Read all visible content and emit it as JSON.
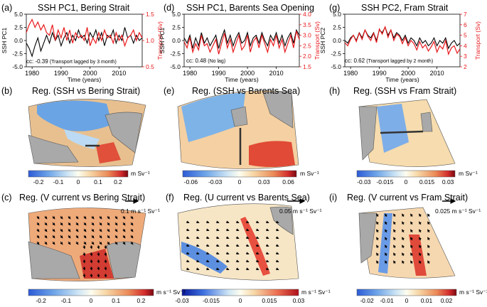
{
  "panels_top": [
    {
      "label": "(a)",
      "title": "SSH PC1, Bering Strait",
      "ylabel_left": "SSH PC1",
      "ylabel_right": "Transport (Sv)",
      "cc": "cc: -0.39",
      "cc_note": "(Transport lagged by 3 month)"
    },
    {
      "label": "(d)",
      "title": "SSH PC1, Barents Sea Opening",
      "ylabel_left": "SSH PC1",
      "ylabel_right": "Transport (Sv)",
      "cc": "cc: 0.48",
      "cc_note": "(No lag)"
    },
    {
      "label": "(g)",
      "title": "SSH PC2, Fram Strait",
      "ylabel_left": "SSH PC2",
      "ylabel_right": "Transport (Sv)",
      "cc": "cc: 0.62",
      "cc_note": "(Transport lagged by 2 month)"
    }
  ],
  "panels_mid": [
    {
      "label": "(b)",
      "title": "Reg. (SSH vs Bering Strait)",
      "unit": "m Sv⁻¹"
    },
    {
      "label": "(e)",
      "title": "Reg. (SSH vs Barents Sea)",
      "unit": "m Sv⁻¹"
    },
    {
      "label": "(h)",
      "title": "Reg. (SSH vs Fram Strait)",
      "unit": "m Sv⁻¹"
    }
  ],
  "panels_bot": [
    {
      "label": "(c)",
      "title": "Reg. (V current vs Bering Strait)",
      "unit": "m s⁻¹ Sv⁻¹",
      "arrow": "0.1 m s⁻¹ Sv⁻¹"
    },
    {
      "label": "(f)",
      "title": "Reg. (U current vs Barents Sea)",
      "unit": "m s⁻¹ Sv⁻¹",
      "arrow": "0.05 m s⁻¹ Sv⁻¹"
    },
    {
      "label": "(i)",
      "title": "Reg. (V current vs Fram Strait)",
      "unit": "m s⁻¹ Sv⁻¹",
      "arrow": "0.025 m s⁻¹ Sv⁻¹"
    }
  ],
  "colors": {
    "ssh": "#000000",
    "transport": "#e8191c",
    "land": "#a9a9a9"
  },
  "chart_data": [
    {
      "type": "line",
      "panel": "a",
      "xlabel": "Time (years)",
      "xlim": [
        1978,
        2018
      ],
      "xticks": [
        1980,
        1990,
        2000,
        2010
      ],
      "xtick_labels": [
        "1980",
        "1990",
        "2000",
        "2010"
      ],
      "ylim_left": [
        -5.0,
        5.0
      ],
      "yticks_left": [
        "5.0",
        "2.5",
        "0.0",
        "-2.5",
        "-5.0"
      ],
      "ylim_right": [
        0.5,
        1.5
      ],
      "yticks_right": [
        "1.5",
        "1.0",
        "0.5"
      ],
      "series": [
        {
          "axis": "left",
          "color": "#000000",
          "x": [
            1978,
            1979,
            1980,
            1981,
            1982,
            1983,
            1984,
            1985,
            1986,
            1987,
            1988,
            1989,
            1990,
            1991,
            1992,
            1993,
            1994,
            1995,
            1996,
            1997,
            1998,
            1999,
            2000,
            2001,
            2002,
            2003,
            2004,
            2005,
            2006,
            2007,
            2008,
            2009,
            2010,
            2011,
            2012,
            2013,
            2014,
            2015,
            2016,
            2017,
            2018
          ],
          "values": [
            -0.5,
            -1.5,
            -3.0,
            -1.0,
            0.5,
            -2.0,
            -0.5,
            1.0,
            -0.5,
            1.5,
            0.0,
            1.0,
            -1.0,
            0.5,
            1.5,
            -0.5,
            1.0,
            0.0,
            2.0,
            0.5,
            1.0,
            -0.5,
            1.5,
            0.5,
            2.0,
            0.0,
            1.5,
            -1.0,
            1.0,
            0.5,
            2.0,
            -0.5,
            1.0,
            0.0,
            2.5,
            0.5,
            1.0,
            -0.5,
            1.0,
            0.0,
            0.5
          ]
        },
        {
          "axis": "right",
          "color": "#e8191c",
          "x": [
            1978,
            1979,
            1980,
            1981,
            1982,
            1983,
            1984,
            1985,
            1986,
            1987,
            1988,
            1989,
            1990,
            1991,
            1992,
            1993,
            1994,
            1995,
            1996,
            1997,
            1998,
            1999,
            2000,
            2001,
            2002,
            2003,
            2004,
            2005,
            2006,
            2007,
            2008,
            2009,
            2010,
            2011,
            2012,
            2013,
            2014,
            2015,
            2016,
            2017,
            2018
          ],
          "values": [
            1.15,
            1.3,
            1.4,
            1.25,
            1.35,
            1.2,
            1.3,
            1.15,
            1.1,
            1.3,
            1.0,
            1.2,
            1.05,
            1.25,
            1.0,
            1.2,
            0.95,
            1.15,
            1.05,
            1.1,
            1.0,
            1.25,
            0.9,
            1.05,
            0.95,
            1.15,
            1.0,
            1.2,
            1.05,
            1.1,
            0.95,
            1.15,
            1.0,
            1.1,
            0.9,
            1.05,
            1.1,
            1.2,
            1.0,
            1.15,
            1.05
          ]
        }
      ]
    },
    {
      "type": "line",
      "panel": "d",
      "xlabel": "Time (years)",
      "xlim": [
        1978,
        2018
      ],
      "xticks": [
        1980,
        1990,
        2000,
        2010
      ],
      "xtick_labels": [
        "1980",
        "1990",
        "2000",
        "2010"
      ],
      "ylim_left": [
        -5.0,
        5.0
      ],
      "yticks_left": [
        "5.0",
        "2.5",
        "0.0",
        "-2.5",
        "-5.0"
      ],
      "ylim_right": [
        1.5,
        4.0
      ],
      "yticks_right": [
        "4.0",
        "3.5",
        "3.0",
        "2.5",
        "2.0",
        "1.5"
      ],
      "series": [
        {
          "axis": "left",
          "color": "#000000",
          "x": [
            1978,
            1979,
            1980,
            1981,
            1982,
            1983,
            1984,
            1985,
            1986,
            1987,
            1988,
            1989,
            1990,
            1991,
            1992,
            1993,
            1994,
            1995,
            1996,
            1997,
            1998,
            1999,
            2000,
            2001,
            2002,
            2003,
            2004,
            2005,
            2006,
            2007,
            2008,
            2009,
            2010,
            2011,
            2012,
            2013,
            2014,
            2015,
            2016,
            2017,
            2018
          ],
          "values": [
            0.5,
            -0.5,
            1.0,
            -1.5,
            0.5,
            -1.0,
            1.5,
            -0.5,
            0.5,
            -1.0,
            0.0,
            1.0,
            -1.5,
            0.5,
            2.0,
            -0.5,
            1.0,
            -1.0,
            0.5,
            1.5,
            -0.5,
            0.0,
            1.5,
            -1.0,
            0.5,
            1.0,
            -0.5,
            1.5,
            0.0,
            -1.0,
            1.0,
            0.0,
            1.5,
            -0.5,
            1.0,
            -1.0,
            0.5,
            1.5,
            -0.5,
            2.0,
            1.0
          ]
        },
        {
          "axis": "right",
          "color": "#e8191c",
          "x": [
            1978,
            1979,
            1980,
            1981,
            1982,
            1983,
            1984,
            1985,
            1986,
            1987,
            1988,
            1989,
            1990,
            1991,
            1992,
            1993,
            1994,
            1995,
            1996,
            1997,
            1998,
            1999,
            2000,
            2001,
            2002,
            2003,
            2004,
            2005,
            2006,
            2007,
            2008,
            2009,
            2010,
            2011,
            2012,
            2013,
            2014,
            2015,
            2016,
            2017,
            2018
          ],
          "values": [
            2.7,
            2.4,
            2.9,
            2.2,
            2.6,
            2.3,
            3.0,
            2.5,
            2.6,
            2.2,
            2.5,
            2.8,
            2.1,
            2.6,
            3.1,
            2.4,
            2.8,
            2.2,
            2.6,
            3.0,
            2.3,
            2.5,
            3.0,
            2.2,
            2.7,
            2.9,
            2.4,
            3.0,
            2.6,
            2.2,
            2.8,
            2.5,
            3.0,
            2.4,
            2.8,
            2.2,
            2.6,
            3.0,
            2.4,
            3.2,
            2.8
          ]
        }
      ]
    },
    {
      "type": "line",
      "panel": "g",
      "xlabel": "Time (years)",
      "xlim": [
        1978,
        2018
      ],
      "xticks": [
        1980,
        1990,
        2000,
        2010
      ],
      "xtick_labels": [
        "1980",
        "1990",
        "2000",
        "2010"
      ],
      "ylim_left": [
        -5.0,
        5.0
      ],
      "yticks_left": [
        "5.0",
        "2.5",
        "0.0",
        "-2.5",
        "-5.0"
      ],
      "ylim_right": [
        2,
        7
      ],
      "yticks_right": [
        "7",
        "6",
        "5",
        "4",
        "3",
        "2"
      ],
      "series": [
        {
          "axis": "left",
          "color": "#000000",
          "x": [
            1978,
            1979,
            1980,
            1981,
            1982,
            1983,
            1984,
            1985,
            1986,
            1987,
            1988,
            1989,
            1990,
            1991,
            1992,
            1993,
            1994,
            1995,
            1996,
            1997,
            1998,
            1999,
            2000,
            2001,
            2002,
            2003,
            2004,
            2005,
            2006,
            2007,
            2008,
            2009,
            2010,
            2011,
            2012,
            2013,
            2014,
            2015,
            2016,
            2017,
            2018
          ],
          "values": [
            0.0,
            -0.5,
            0.5,
            1.0,
            0.0,
            1.5,
            0.5,
            2.0,
            1.0,
            0.5,
            1.5,
            0.0,
            2.0,
            1.5,
            2.5,
            1.0,
            2.0,
            0.5,
            1.5,
            1.0,
            0.0,
            1.0,
            -0.5,
            0.5,
            0.0,
            -1.0,
            0.5,
            -0.5,
            0.0,
            -1.0,
            -0.5,
            0.5,
            -1.0,
            0.0,
            -0.5,
            0.5,
            -1.5,
            -0.5,
            0.0,
            -1.0,
            -0.5
          ]
        },
        {
          "axis": "right",
          "color": "#e8191c",
          "x": [
            1978,
            1979,
            1980,
            1981,
            1982,
            1983,
            1984,
            1985,
            1986,
            1987,
            1988,
            1989,
            1990,
            1991,
            1992,
            1993,
            1994,
            1995,
            1996,
            1997,
            1998,
            1999,
            2000,
            2001,
            2002,
            2003,
            2004,
            2005,
            2006,
            2007,
            2008,
            2009,
            2010,
            2011,
            2012,
            2013,
            2014,
            2015,
            2016,
            2017,
            2018
          ],
          "values": [
            4.3,
            4.0,
            4.6,
            5.0,
            4.4,
            5.2,
            4.6,
            5.5,
            4.9,
            4.5,
            5.2,
            4.3,
            5.6,
            5.1,
            5.8,
            4.8,
            5.5,
            4.5,
            5.1,
            4.9,
            4.2,
            4.8,
            4.0,
            4.5,
            4.2,
            3.6,
            4.4,
            3.8,
            4.1,
            3.5,
            3.9,
            4.4,
            3.4,
            4.0,
            3.7,
            4.5,
            3.2,
            3.8,
            4.0,
            3.3,
            3.7
          ]
        }
      ]
    },
    {
      "type": "heatmap",
      "panel": "b",
      "title": "Reg. (SSH vs Bering Strait)",
      "colorbar_ticks": [
        "-0.2",
        "-0.1",
        "0",
        "0.1",
        "0.2"
      ],
      "vlim": [
        -0.25,
        0.25
      ]
    },
    {
      "type": "heatmap",
      "panel": "e",
      "title": "Reg. (SSH vs Barents Sea)",
      "colorbar_ticks": [
        "-0.06",
        "-0.03",
        "0",
        "0.03",
        "0.06"
      ],
      "vlim": [
        -0.07,
        0.07
      ]
    },
    {
      "type": "heatmap",
      "panel": "h",
      "title": "Reg. (SSH vs Fram Strait)",
      "colorbar_ticks": [
        "-0.03",
        "-0.015",
        "0",
        "0.015",
        "0.03"
      ],
      "vlim": [
        -0.035,
        0.035
      ]
    },
    {
      "type": "heatmap",
      "panel": "c",
      "title": "Reg. (V current vs Bering Strait)",
      "colorbar_ticks": [
        "-0.2",
        "-0.1",
        "0",
        "0.1",
        "0.2"
      ],
      "vlim": [
        -0.25,
        0.25
      ]
    },
    {
      "type": "heatmap",
      "panel": "f",
      "title": "Reg. (U current vs Barents Sea)",
      "colorbar_ticks": [
        "-0.03",
        "-0.015",
        "0",
        "0.015",
        "0.03"
      ],
      "vlim": [
        -0.03,
        0.03
      ]
    },
    {
      "type": "heatmap",
      "panel": "i",
      "title": "Reg. (V current vs Fram Strait)",
      "colorbar_ticks": [
        "-0.02",
        "-0.01",
        "0",
        "0.01",
        "0.02"
      ],
      "vlim": [
        -0.025,
        0.025
      ]
    }
  ]
}
